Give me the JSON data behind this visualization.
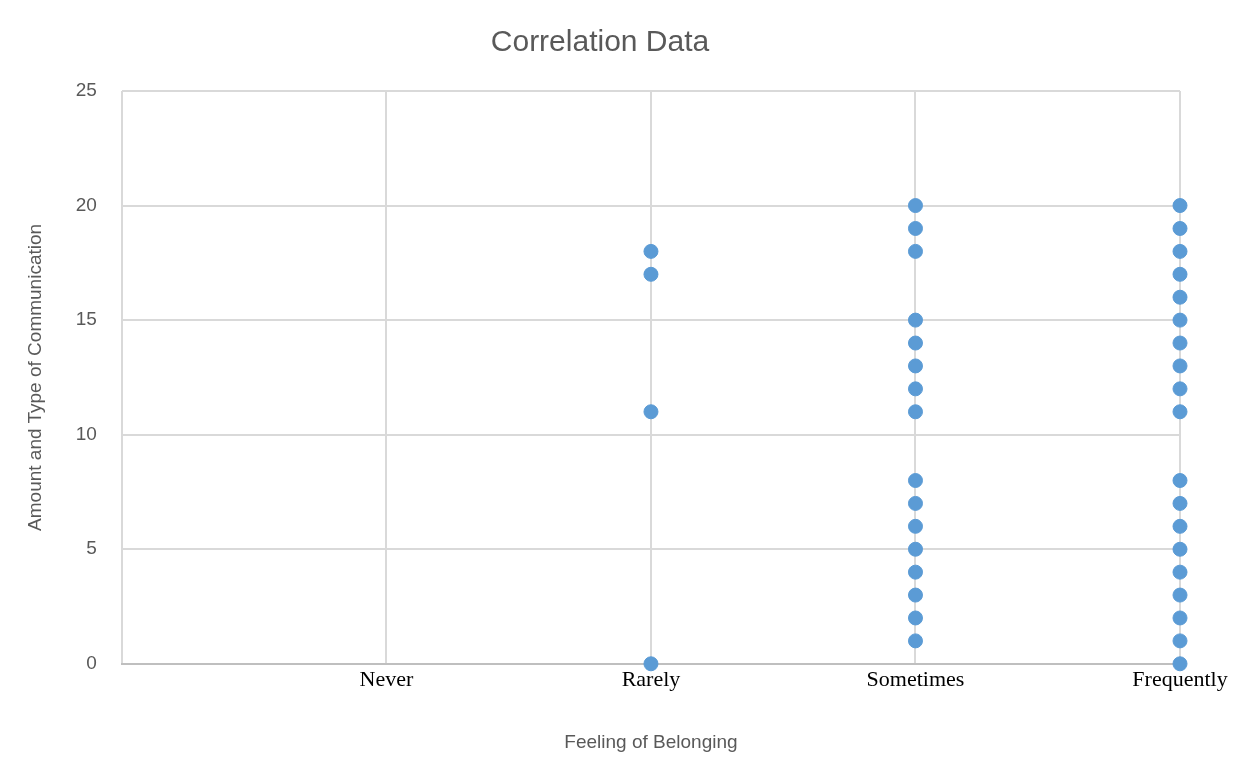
{
  "chart_data": {
    "type": "scatter",
    "title": "Correlation Data",
    "xlabel": "Feeling of Belonging",
    "ylabel": "Amount and Type of Communication",
    "categories": [
      null,
      "Never",
      "Rarely",
      "Sometimes",
      "Frequently"
    ],
    "ylim": [
      0,
      25
    ],
    "yticks": [
      0,
      5,
      10,
      15,
      20,
      25
    ],
    "series": [
      {
        "color": "#5b9bd5",
        "x": [
          "Rarely",
          "Rarely",
          "Rarely",
          "Rarely",
          "Sometimes",
          "Sometimes",
          "Sometimes",
          "Sometimes",
          "Sometimes",
          "Sometimes",
          "Sometimes",
          "Sometimes",
          "Sometimes",
          "Sometimes",
          "Sometimes",
          "Sometimes",
          "Sometimes",
          "Sometimes",
          "Sometimes",
          "Sometimes",
          "Frequently",
          "Frequently",
          "Frequently",
          "Frequently",
          "Frequently",
          "Frequently",
          "Frequently",
          "Frequently",
          "Frequently",
          "Frequently",
          "Frequently",
          "Frequently",
          "Frequently",
          "Frequently",
          "Frequently",
          "Frequently",
          "Frequently",
          "Frequently",
          "Frequently"
        ],
        "values": [
          18,
          17,
          11,
          0,
          20,
          19,
          18,
          15,
          14,
          13,
          12,
          11,
          8,
          7,
          6,
          5,
          4,
          3,
          2,
          1,
          20,
          19,
          18,
          17,
          16,
          15,
          14,
          13,
          12,
          11,
          8,
          7,
          6,
          5,
          4,
          3,
          2,
          1,
          0
        ]
      }
    ],
    "grid": true,
    "legend": false,
    "marker": "circle"
  }
}
